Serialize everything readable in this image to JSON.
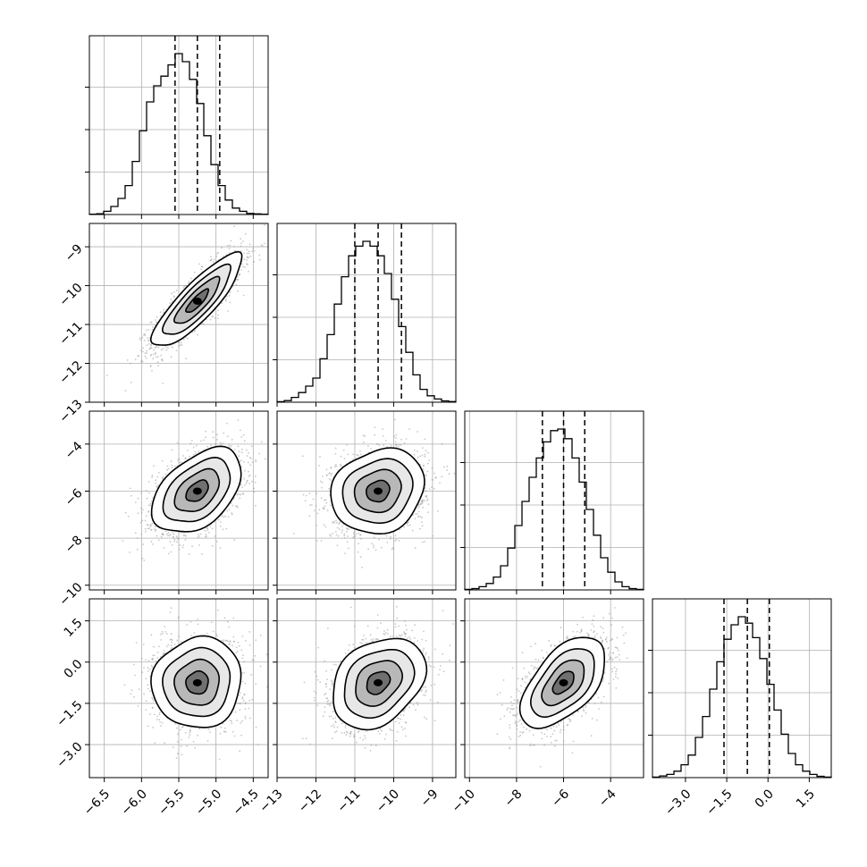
{
  "chart_data": {
    "type": "corner",
    "grid": true,
    "colors": {
      "line": "#000000",
      "grid": "#b0b0b0",
      "points": "#9a9a9a"
    },
    "parameters": [
      {
        "range": [
          -6.7,
          -4.3
        ],
        "median": -5.25,
        "q16": -5.55,
        "q84": -4.95,
        "ticks": [
          -6.5,
          -6.0,
          -5.5,
          -5.0,
          -4.5
        ],
        "tick_labels": [
          "−6.5",
          "−6.0",
          "−5.5",
          "−5.0",
          "−4.5"
        ],
        "hist": [
          0.002,
          0.005,
          0.02,
          0.05,
          0.1,
          0.18,
          0.33,
          0.52,
          0.7,
          0.8,
          0.86,
          0.93,
          1.0,
          0.95,
          0.84,
          0.69,
          0.49,
          0.31,
          0.18,
          0.09,
          0.04,
          0.02,
          0.007,
          0.004,
          0.002
        ]
      },
      {
        "range": [
          -13.0,
          -8.4
        ],
        "median": -10.4,
        "q16": -11.0,
        "q84": -9.8,
        "ticks": [
          -13,
          -12,
          -11,
          -10,
          -9
        ],
        "tick_labels": [
          "−13",
          "−12",
          "−11",
          "−10",
          "−9"
        ],
        "hist": [
          0.003,
          0.01,
          0.03,
          0.06,
          0.1,
          0.15,
          0.27,
          0.42,
          0.61,
          0.78,
          0.91,
          0.97,
          1.0,
          0.97,
          0.91,
          0.8,
          0.64,
          0.47,
          0.31,
          0.17,
          0.08,
          0.04,
          0.02,
          0.008,
          0.004
        ]
      },
      {
        "range": [
          -10.2,
          -2.6
        ],
        "median": -6.0,
        "q16": -6.9,
        "q84": -5.1,
        "ticks": [
          -10,
          -8,
          -6,
          -4
        ],
        "tick_labels": [
          "−10",
          "−8",
          "−6",
          "−4"
        ],
        "hist": [
          0.003,
          0.008,
          0.02,
          0.04,
          0.08,
          0.15,
          0.26,
          0.4,
          0.55,
          0.7,
          0.82,
          0.92,
          0.99,
          1.0,
          0.94,
          0.82,
          0.67,
          0.5,
          0.34,
          0.2,
          0.11,
          0.05,
          0.02,
          0.008,
          0.003
        ]
      },
      {
        "range": [
          -4.2,
          2.3
        ],
        "median": -0.75,
        "q16": -1.6,
        "q84": 0.05,
        "ticks": [
          -3.0,
          -1.5,
          0.0,
          1.5
        ],
        "tick_labels": [
          "−3.0",
          "−1.5",
          "0.0",
          "1.5"
        ],
        "hist": [
          0.003,
          0.01,
          0.02,
          0.04,
          0.08,
          0.14,
          0.25,
          0.38,
          0.55,
          0.72,
          0.86,
          0.95,
          1.0,
          0.96,
          0.87,
          0.74,
          0.58,
          0.42,
          0.27,
          0.15,
          0.08,
          0.04,
          0.02,
          0.008,
          0.003
        ]
      }
    ],
    "y_tick_labels": {
      "1": [
        "−9",
        "−10",
        "−11",
        "−12",
        "−13"
      ],
      "2": [
        "−4",
        "−6",
        "−8",
        "−10"
      ],
      "3": [
        "1.5",
        "0.0",
        "−1.5",
        "−3.0"
      ]
    },
    "y_ticks": {
      "1": [
        -9,
        -10,
        -11,
        -12,
        -13
      ],
      "2": [
        -4,
        -6,
        -8,
        -10
      ],
      "3": [
        1.5,
        0.0,
        -1.5,
        -3.0
      ]
    },
    "correlations": {
      "1-0": 0.85,
      "2-0": 0.45,
      "2-1": 0.15,
      "3-0": 0.05,
      "3-1": 0.3,
      "3-2": 0.55
    },
    "contour_levels_sigma": [
      0.5,
      1.0,
      1.5,
      2.0
    ]
  }
}
